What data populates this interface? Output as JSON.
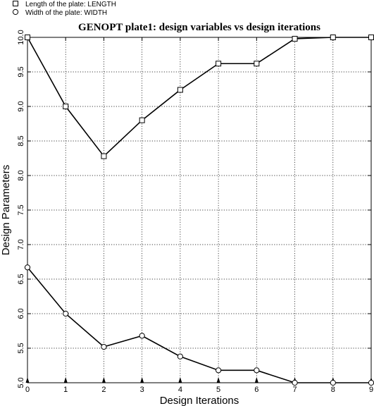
{
  "chart_data": {
    "type": "line",
    "title": "GENOPT plate1: design variables vs design iterations",
    "xlabel": "Design Iterations",
    "ylabel": "Design Parameters",
    "xlim": [
      0,
      9
    ],
    "ylim": [
      5.0,
      10.0
    ],
    "grid": true,
    "legend_position": "top-left",
    "x_ticks": [
      "0",
      "1",
      "2",
      "3",
      "4",
      "5",
      "6",
      "7",
      "8",
      "9"
    ],
    "y_ticks": [
      "5.0",
      "5.5",
      "6.0",
      "6.5",
      "7.0",
      "7.5",
      "8.0",
      "8.5",
      "9.0",
      "9.5",
      "10.0"
    ],
    "x": [
      0,
      1,
      2,
      3,
      4,
      5,
      6,
      7,
      8,
      9
    ],
    "series": [
      {
        "name": "Length of the plate: LENGTH",
        "marker": "square",
        "values": [
          10.0,
          9.0,
          8.28,
          8.8,
          9.24,
          9.62,
          9.62,
          9.98,
          10.0,
          10.0
        ]
      },
      {
        "name": "Width of the plate: WIDTH",
        "marker": "circle",
        "values": [
          6.67,
          6.0,
          5.52,
          5.68,
          5.38,
          5.18,
          5.18,
          5.0,
          5.0,
          5.0
        ]
      }
    ],
    "colors": {
      "line": "#000000",
      "grid": "#000000",
      "background": "#ffffff"
    }
  }
}
